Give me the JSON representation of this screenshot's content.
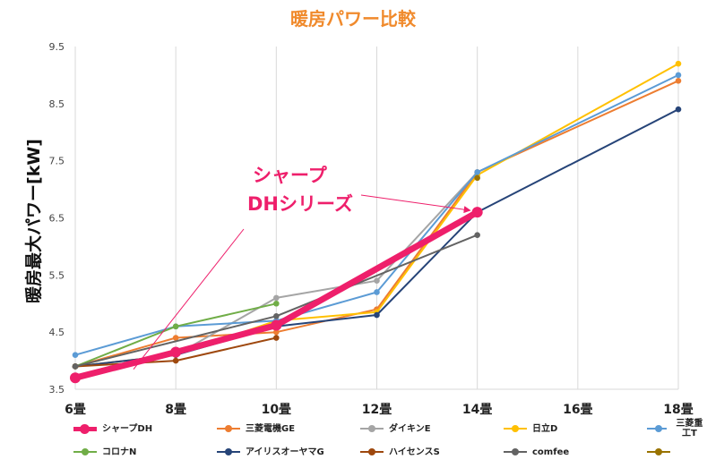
{
  "chart_data": {
    "type": "line",
    "title": "暖房パワー比較",
    "ylabel": "暖房最大パワー[kW]",
    "xlabel": "",
    "categories": [
      "6畳",
      "8畳",
      "10畳",
      "12畳",
      "14畳",
      "16畳",
      "18畳"
    ],
    "x_values": [
      6,
      8,
      10,
      12,
      14,
      16,
      18
    ],
    "ylim": [
      3.5,
      9.5
    ],
    "yticks": [
      "3.5",
      "4.5",
      "5.5",
      "6.5",
      "7.5",
      "8.5",
      "9.5"
    ],
    "grid": "vertical",
    "legend_position": "bottom",
    "annotation": {
      "text": [
        "シャープ",
        "DHシリーズ"
      ],
      "color": "#ee1f6b"
    },
    "series": [
      {
        "name": "シャープDH",
        "color": "#ee1f6b",
        "emphasis": true,
        "points": [
          [
            6,
            3.7
          ],
          [
            8,
            4.15
          ],
          [
            10,
            4.62
          ],
          [
            14,
            6.6
          ]
        ]
      },
      {
        "name": "三菱電機GE",
        "color": "#ed7d31",
        "points": [
          [
            6,
            3.9
          ],
          [
            8,
            4.4
          ],
          [
            10,
            4.5
          ],
          [
            12,
            4.9
          ],
          [
            14,
            7.3
          ],
          [
            18,
            8.9
          ]
        ]
      },
      {
        "name": "ダイキンE",
        "color": "#a5a5a5",
        "points": [
          [
            6,
            3.9
          ],
          [
            8,
            4.1
          ],
          [
            10,
            5.1
          ],
          [
            12,
            5.4
          ],
          [
            14,
            7.3
          ]
        ]
      },
      {
        "name": "日立D",
        "color": "#ffc000",
        "points": [
          [
            6,
            3.9
          ],
          [
            8,
            4.1
          ],
          [
            10,
            4.7
          ],
          [
            12,
            4.85
          ],
          [
            14,
            7.25
          ],
          [
            18,
            9.2
          ]
        ]
      },
      {
        "name": "三菱重工T",
        "color": "#5b9bd5",
        "points": [
          [
            6,
            4.1
          ],
          [
            8,
            4.6
          ],
          [
            10,
            4.7
          ],
          [
            12,
            5.2
          ],
          [
            14,
            7.3
          ],
          [
            18,
            9.0
          ]
        ]
      },
      {
        "name": "コロナN",
        "color": "#70ad47",
        "points": [
          [
            6,
            3.9
          ],
          [
            8,
            4.6
          ],
          [
            10,
            5.0
          ]
        ]
      },
      {
        "name": "アイリスオーヤマG",
        "color": "#264478",
        "points": [
          [
            6,
            3.9
          ],
          [
            8,
            4.1
          ],
          [
            10,
            4.6
          ],
          [
            12,
            4.8
          ],
          [
            14,
            6.6
          ],
          [
            18,
            8.4
          ]
        ]
      },
      {
        "name": "ハイセンスS",
        "color": "#9e480e",
        "points": [
          [
            6,
            3.9
          ],
          [
            8,
            4.0
          ],
          [
            10,
            4.4
          ]
        ]
      },
      {
        "name": "comfee",
        "color": "#636363",
        "points": [
          [
            6,
            3.9
          ],
          [
            10,
            4.78
          ],
          [
            14,
            6.2
          ]
        ]
      },
      {
        "name": "",
        "color": "#997300",
        "points": [
          [
            14,
            7.2
          ]
        ]
      }
    ]
  }
}
